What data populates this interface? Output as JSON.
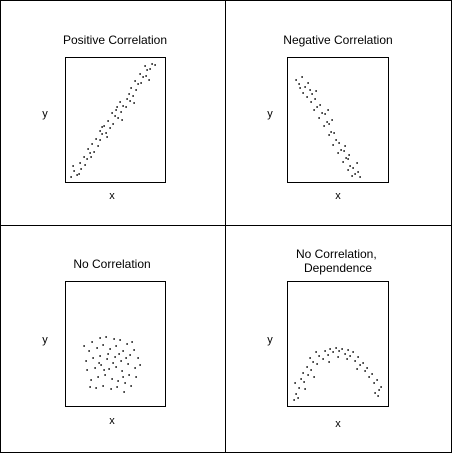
{
  "chart_data": [
    {
      "type": "scatter",
      "title_lines": [
        "Positive Correlation"
      ],
      "xlabel": "x",
      "ylabel": "y",
      "xlim": [
        0,
        1
      ],
      "ylim": [
        0,
        1
      ],
      "points": [
        [
          0.03,
          0.02
        ],
        [
          0.06,
          0.07
        ],
        [
          0.05,
          0.11
        ],
        [
          0.11,
          0.05
        ],
        [
          0.13,
          0.09
        ],
        [
          0.12,
          0.14
        ],
        [
          0.18,
          0.12
        ],
        [
          0.16,
          0.19
        ],
        [
          0.2,
          0.17
        ],
        [
          0.23,
          0.22
        ],
        [
          0.21,
          0.26
        ],
        [
          0.27,
          0.23
        ],
        [
          0.25,
          0.3
        ],
        [
          0.31,
          0.28
        ],
        [
          0.29,
          0.34
        ],
        [
          0.34,
          0.33
        ],
        [
          0.36,
          0.38
        ],
        [
          0.33,
          0.41
        ],
        [
          0.4,
          0.39
        ],
        [
          0.38,
          0.45
        ],
        [
          0.44,
          0.43
        ],
        [
          0.42,
          0.49
        ],
        [
          0.47,
          0.47
        ],
        [
          0.49,
          0.53
        ],
        [
          0.46,
          0.56
        ],
        [
          0.53,
          0.52
        ],
        [
          0.51,
          0.58
        ],
        [
          0.56,
          0.57
        ],
        [
          0.58,
          0.62
        ],
        [
          0.55,
          0.65
        ],
        [
          0.61,
          0.61
        ],
        [
          0.62,
          0.68
        ],
        [
          0.65,
          0.66
        ],
        [
          0.64,
          0.72
        ],
        [
          0.69,
          0.7
        ],
        [
          0.67,
          0.77
        ],
        [
          0.72,
          0.75
        ],
        [
          0.74,
          0.8
        ],
        [
          0.71,
          0.83
        ],
        [
          0.77,
          0.81
        ],
        [
          0.79,
          0.86
        ],
        [
          0.76,
          0.89
        ],
        [
          0.82,
          0.87
        ],
        [
          0.84,
          0.92
        ],
        [
          0.81,
          0.95
        ],
        [
          0.87,
          0.93
        ],
        [
          0.89,
          0.97
        ],
        [
          0.86,
          0.84
        ],
        [
          0.7,
          0.64
        ],
        [
          0.57,
          0.5
        ],
        [
          0.41,
          0.36
        ],
        [
          0.24,
          0.19
        ],
        [
          0.09,
          0.04
        ],
        [
          0.92,
          0.96
        ],
        [
          0.52,
          0.61
        ],
        [
          0.36,
          0.44
        ]
      ]
    },
    {
      "type": "scatter",
      "title_lines": [
        "Negative Correlation"
      ],
      "xlabel": "x",
      "ylabel": "y",
      "xlim": [
        0,
        1
      ],
      "ylim": [
        0,
        1
      ],
      "points": [
        [
          0.06,
          0.84
        ],
        [
          0.09,
          0.8
        ],
        [
          0.12,
          0.86
        ],
        [
          0.15,
          0.78
        ],
        [
          0.13,
          0.73
        ],
        [
          0.18,
          0.81
        ],
        [
          0.2,
          0.75
        ],
        [
          0.17,
          0.69
        ],
        [
          0.23,
          0.72
        ],
        [
          0.22,
          0.65
        ],
        [
          0.26,
          0.68
        ],
        [
          0.28,
          0.61
        ],
        [
          0.25,
          0.58
        ],
        [
          0.31,
          0.63
        ],
        [
          0.33,
          0.56
        ],
        [
          0.3,
          0.52
        ],
        [
          0.36,
          0.55
        ],
        [
          0.38,
          0.48
        ],
        [
          0.35,
          0.45
        ],
        [
          0.41,
          0.47
        ],
        [
          0.43,
          0.4
        ],
        [
          0.4,
          0.37
        ],
        [
          0.46,
          0.39
        ],
        [
          0.48,
          0.33
        ],
        [
          0.45,
          0.29
        ],
        [
          0.51,
          0.31
        ],
        [
          0.53,
          0.25
        ],
        [
          0.5,
          0.22
        ],
        [
          0.56,
          0.24
        ],
        [
          0.58,
          0.18
        ],
        [
          0.55,
          0.15
        ],
        [
          0.61,
          0.17
        ],
        [
          0.63,
          0.11
        ],
        [
          0.6,
          0.08
        ],
        [
          0.66,
          0.1
        ],
        [
          0.68,
          0.05
        ],
        [
          0.65,
          0.03
        ],
        [
          0.71,
          0.06
        ],
        [
          0.73,
          0.02
        ],
        [
          0.7,
          0.14
        ],
        [
          0.62,
          0.21
        ],
        [
          0.44,
          0.5
        ],
        [
          0.27,
          0.74
        ],
        [
          0.1,
          0.77
        ],
        [
          0.57,
          0.28
        ],
        [
          0.39,
          0.58
        ]
      ]
    },
    {
      "type": "scatter",
      "title_lines": [
        "No Correlation"
      ],
      "xlabel": "x",
      "ylabel": "y",
      "xlim": [
        0,
        1
      ],
      "ylim": [
        0,
        1
      ],
      "points": [
        [
          0.25,
          0.52
        ],
        [
          0.33,
          0.55
        ],
        [
          0.4,
          0.56
        ],
        [
          0.48,
          0.54
        ],
        [
          0.55,
          0.53
        ],
        [
          0.62,
          0.5
        ],
        [
          0.7,
          0.45
        ],
        [
          0.22,
          0.44
        ],
        [
          0.3,
          0.47
        ],
        [
          0.37,
          0.49
        ],
        [
          0.44,
          0.46
        ],
        [
          0.51,
          0.48
        ],
        [
          0.58,
          0.44
        ],
        [
          0.65,
          0.41
        ],
        [
          0.74,
          0.38
        ],
        [
          0.19,
          0.36
        ],
        [
          0.26,
          0.38
        ],
        [
          0.34,
          0.4
        ],
        [
          0.41,
          0.37
        ],
        [
          0.49,
          0.39
        ],
        [
          0.56,
          0.36
        ],
        [
          0.63,
          0.33
        ],
        [
          0.71,
          0.3
        ],
        [
          0.2,
          0.28
        ],
        [
          0.28,
          0.3
        ],
        [
          0.35,
          0.32
        ],
        [
          0.43,
          0.29
        ],
        [
          0.5,
          0.31
        ],
        [
          0.57,
          0.27
        ],
        [
          0.64,
          0.24
        ],
        [
          0.72,
          0.22
        ],
        [
          0.24,
          0.2
        ],
        [
          0.31,
          0.22
        ],
        [
          0.39,
          0.24
        ],
        [
          0.46,
          0.21
        ],
        [
          0.53,
          0.19
        ],
        [
          0.6,
          0.17
        ],
        [
          0.67,
          0.15
        ],
        [
          0.29,
          0.13
        ],
        [
          0.37,
          0.15
        ],
        [
          0.45,
          0.12
        ],
        [
          0.52,
          0.14
        ],
        [
          0.59,
          0.1
        ],
        [
          0.42,
          0.42
        ],
        [
          0.54,
          0.42
        ],
        [
          0.47,
          0.34
        ],
        [
          0.38,
          0.28
        ],
        [
          0.61,
          0.38
        ],
        [
          0.32,
          0.34
        ],
        [
          0.58,
          0.22
        ],
        [
          0.16,
          0.48
        ],
        [
          0.76,
          0.32
        ],
        [
          0.23,
          0.14
        ],
        [
          0.68,
          0.52
        ]
      ]
    },
    {
      "type": "scatter",
      "title_lines": [
        "No Correlation,",
        "Dependence"
      ],
      "xlabel": "x",
      "ylabel": "y",
      "xlim": [
        0,
        1
      ],
      "ylim": [
        0,
        1
      ],
      "points": [
        [
          0.04,
          0.03
        ],
        [
          0.06,
          0.08
        ],
        [
          0.09,
          0.13
        ],
        [
          0.05,
          0.17
        ],
        [
          0.11,
          0.21
        ],
        [
          0.14,
          0.18
        ],
        [
          0.13,
          0.26
        ],
        [
          0.18,
          0.24
        ],
        [
          0.17,
          0.31
        ],
        [
          0.22,
          0.28
        ],
        [
          0.24,
          0.35
        ],
        [
          0.21,
          0.38
        ],
        [
          0.28,
          0.33
        ],
        [
          0.3,
          0.4
        ],
        [
          0.27,
          0.43
        ],
        [
          0.34,
          0.37
        ],
        [
          0.36,
          0.44
        ],
        [
          0.39,
          0.41
        ],
        [
          0.42,
          0.46
        ],
        [
          0.45,
          0.43
        ],
        [
          0.48,
          0.47
        ],
        [
          0.51,
          0.44
        ],
        [
          0.54,
          0.46
        ],
        [
          0.57,
          0.42
        ],
        [
          0.6,
          0.45
        ],
        [
          0.63,
          0.4
        ],
        [
          0.66,
          0.43
        ],
        [
          0.68,
          0.36
        ],
        [
          0.71,
          0.39
        ],
        [
          0.73,
          0.32
        ],
        [
          0.76,
          0.34
        ],
        [
          0.78,
          0.27
        ],
        [
          0.81,
          0.3
        ],
        [
          0.83,
          0.22
        ],
        [
          0.86,
          0.25
        ],
        [
          0.88,
          0.17
        ],
        [
          0.91,
          0.2
        ],
        [
          0.93,
          0.11
        ],
        [
          0.95,
          0.14
        ],
        [
          0.92,
          0.06
        ],
        [
          0.89,
          0.09
        ],
        [
          0.08,
          0.05
        ],
        [
          0.15,
          0.12
        ],
        [
          0.4,
          0.35
        ],
        [
          0.59,
          0.37
        ],
        [
          0.7,
          0.29
        ],
        [
          0.25,
          0.22
        ],
        [
          0.5,
          0.39
        ]
      ]
    }
  ]
}
